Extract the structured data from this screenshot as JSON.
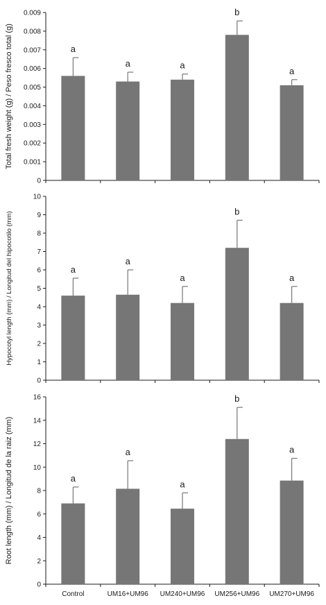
{
  "colors": {
    "bar": "#767676",
    "axis": "#1a1a1a",
    "error": "#767676",
    "background": "#ffffff"
  },
  "chart_data": [
    {
      "type": "bar",
      "ylabel": "Total fresh weight (g) / Peso fresco total (g)",
      "ylim": [
        0,
        0.009
      ],
      "yticks": [
        "0",
        "0.001",
        "0.002",
        "0.003",
        "0.004",
        "0.005",
        "0.006",
        "0.007",
        "0.008",
        "0.009"
      ],
      "categories": [
        "Control",
        "UM16+UM96",
        "UM240+UM96",
        "UM256+UM96",
        "UM270+UM96"
      ],
      "values": [
        0.0056,
        0.0053,
        0.0054,
        0.0078,
        0.0051
      ],
      "errors": [
        0.00098,
        0.0005,
        0.0003,
        0.00075,
        0.0003
      ],
      "significance": [
        "a",
        "a",
        "a",
        "b",
        "a"
      ],
      "show_xticklabels": false
    },
    {
      "type": "bar",
      "ylabel": "Hypocotyl length (mm) / Longitud del hipocotilo (mm)",
      "ylim": [
        0,
        10
      ],
      "yticks": [
        "0",
        "1",
        "2",
        "3",
        "4",
        "5",
        "6",
        "7",
        "8",
        "9",
        "10"
      ],
      "categories": [
        "Control",
        "UM16+UM96",
        "UM240+UM96",
        "UM256+UM96",
        "UM270+UM96"
      ],
      "values": [
        4.6,
        4.65,
        4.2,
        7.2,
        4.2
      ],
      "errors": [
        0.95,
        1.35,
        0.9,
        1.5,
        0.9
      ],
      "significance": [
        "a",
        "a",
        "a",
        "b",
        "a"
      ],
      "show_xticklabels": false
    },
    {
      "type": "bar",
      "ylabel": "Root length (mm) / Longitud de la raiz (mm)",
      "ylim": [
        0,
        16
      ],
      "yticks": [
        "0",
        "2",
        "4",
        "6",
        "8",
        "10",
        "12",
        "14",
        "16"
      ],
      "categories": [
        "Control",
        "UM16+UM96",
        "UM240+UM96",
        "UM256+UM96",
        "UM270+UM96"
      ],
      "values": [
        6.9,
        8.15,
        6.45,
        12.4,
        8.85
      ],
      "errors": [
        1.4,
        2.4,
        1.35,
        2.7,
        1.9
      ],
      "significance": [
        "a",
        "a",
        "a",
        "b",
        "a"
      ],
      "show_xticklabels": true
    }
  ]
}
